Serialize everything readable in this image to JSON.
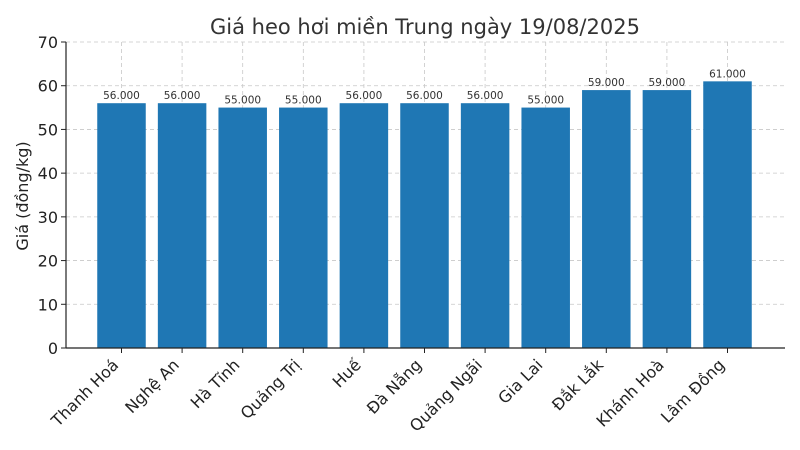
{
  "chart_data": {
    "type": "bar",
    "title": "Giá heo hơi miền Trung ngày 19/08/2025",
    "xlabel": "",
    "ylabel": "Giá (đồng/kg)",
    "ylim": [
      0,
      70
    ],
    "yticks": [
      0,
      10,
      20,
      30,
      40,
      50,
      60,
      70
    ],
    "grid": true,
    "bar_color": "#1f77b4",
    "categories": [
      "Thanh Hoá",
      "Nghệ An",
      "Hà Tĩnh",
      "Quảng Trị",
      "Huế",
      "Đà Nẵng",
      "Quảng Ngãi",
      "Gia Lai",
      "Đắk Lắk",
      "Khánh Hoà",
      "Lâm Đồng"
    ],
    "values": [
      56,
      56,
      55,
      55,
      56,
      56,
      56,
      55,
      59,
      59,
      61
    ],
    "value_labels": [
      "56.000",
      "56.000",
      "55.000",
      "55.000",
      "56.000",
      "56.000",
      "56.000",
      "55.000",
      "59.000",
      "59.000",
      "61.000"
    ]
  }
}
